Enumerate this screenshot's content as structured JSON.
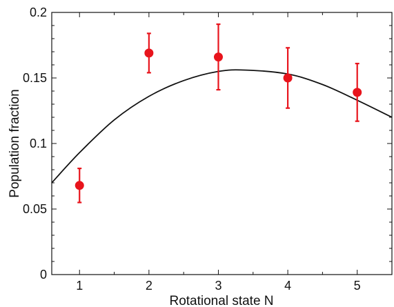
{
  "chart_data": {
    "type": "scatter",
    "title": "",
    "xlabel": "Rotational state N",
    "ylabel": "Population fraction",
    "xlim": [
      0.6,
      5.5
    ],
    "ylim": [
      0,
      0.2
    ],
    "x_ticks": [
      1,
      2,
      3,
      4,
      5
    ],
    "x_tick_labels": [
      "1",
      "2",
      "3",
      "4",
      "5"
    ],
    "y_ticks": [
      0,
      0.05,
      0.1,
      0.15,
      0.2
    ],
    "y_tick_labels": [
      "0",
      "0.05",
      "0.1",
      "0.15",
      "0.2"
    ],
    "grid": false,
    "legend": "none",
    "series": [
      {
        "type": "scatter",
        "color": "#e8141c",
        "x": [
          1,
          2,
          3,
          4,
          5
        ],
        "y": [
          0.068,
          0.169,
          0.166,
          0.15,
          0.139
        ],
        "error_low": [
          0.055,
          0.154,
          0.141,
          0.127,
          0.117
        ],
        "error_high": [
          0.081,
          0.184,
          0.191,
          0.173,
          0.161
        ]
      },
      {
        "type": "line",
        "color": "#111111",
        "x": [
          0.6,
          1.0,
          1.5,
          2.0,
          2.5,
          3.0,
          3.4,
          4.0,
          4.5,
          5.0,
          5.5
        ],
        "y": [
          0.07,
          0.093,
          0.118,
          0.136,
          0.148,
          0.155,
          0.156,
          0.153,
          0.145,
          0.133,
          0.12
        ]
      }
    ]
  }
}
